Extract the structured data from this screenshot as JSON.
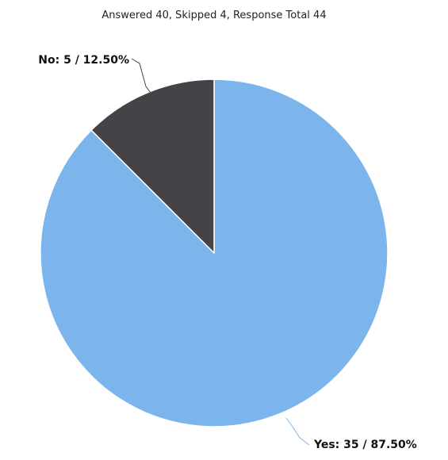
{
  "chart_data": {
    "type": "pie",
    "subtitle": "Answered 40, Skipped 4, Response Total 44",
    "slices": [
      {
        "category": "Yes",
        "count": 35,
        "percent": 87.5,
        "label": "Yes: 35 / 87.50%",
        "color": "#7cb5ec"
      },
      {
        "category": "No",
        "count": 5,
        "percent": 12.5,
        "label": "No: 5 / 12.50%",
        "color": "#434348"
      }
    ],
    "start_angle_deg": 0,
    "direction": "clockwise",
    "slice_border_color": "#ffffff",
    "connector_colors": [
      "#7cb5ec",
      "#434348"
    ]
  }
}
